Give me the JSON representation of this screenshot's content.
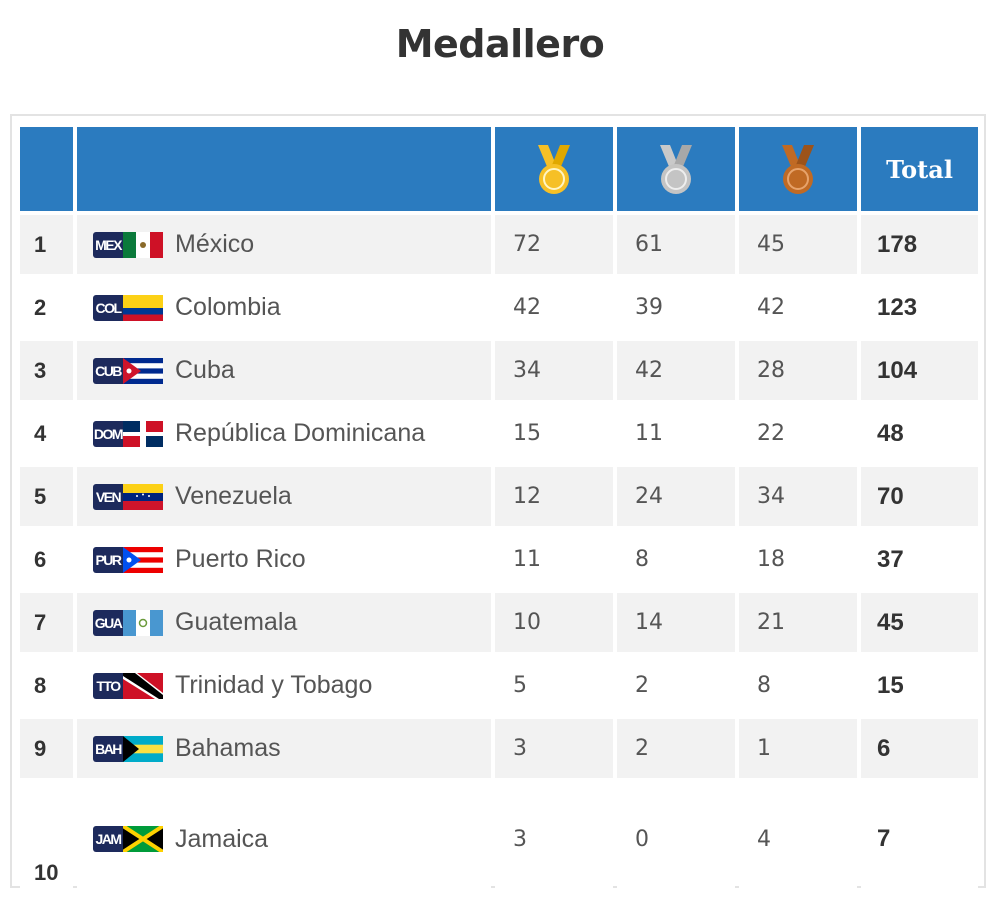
{
  "title": "Medallero",
  "header": {
    "total_label": "Total"
  },
  "icons": {
    "gold": "gold-medal-icon",
    "silver": "silver-medal-icon",
    "bronze": "bronze-medal-icon"
  },
  "colors": {
    "header_bg": "#2b7bbf",
    "gold": "#f6c026",
    "silver": "#bfbfbf",
    "bronze": "#c06a24"
  },
  "rows": [
    {
      "rank": "1",
      "code": "MEX",
      "country": "México",
      "gold": "72",
      "silver": "61",
      "bronze": "45",
      "total": "178"
    },
    {
      "rank": "2",
      "code": "COL",
      "country": "Colombia",
      "gold": "42",
      "silver": "39",
      "bronze": "42",
      "total": "123"
    },
    {
      "rank": "3",
      "code": "CUB",
      "country": "Cuba",
      "gold": "34",
      "silver": "42",
      "bronze": "28",
      "total": "104"
    },
    {
      "rank": "4",
      "code": "DOM",
      "country": "República Dominicana",
      "gold": "15",
      "silver": "11",
      "bronze": "22",
      "total": "48"
    },
    {
      "rank": "5",
      "code": "VEN",
      "country": "Venezuela",
      "gold": "12",
      "silver": "24",
      "bronze": "34",
      "total": "70"
    },
    {
      "rank": "6",
      "code": "PUR",
      "country": "Puerto Rico",
      "gold": "11",
      "silver": "8",
      "bronze": "18",
      "total": "37"
    },
    {
      "rank": "7",
      "code": "GUA",
      "country": "Guatemala",
      "gold": "10",
      "silver": "14",
      "bronze": "21",
      "total": "45"
    },
    {
      "rank": "8",
      "code": "TTO",
      "country": "Trinidad y Tobago",
      "gold": "5",
      "silver": "2",
      "bronze": "8",
      "total": "15"
    },
    {
      "rank": "9",
      "code": "BAH",
      "country": "Bahamas",
      "gold": "3",
      "silver": "2",
      "bronze": "1",
      "total": "6"
    },
    {
      "rank": "10",
      "code": "JAM",
      "country": "Jamaica",
      "gold": "3",
      "silver": "0",
      "bronze": "4",
      "total": "7"
    }
  ]
}
